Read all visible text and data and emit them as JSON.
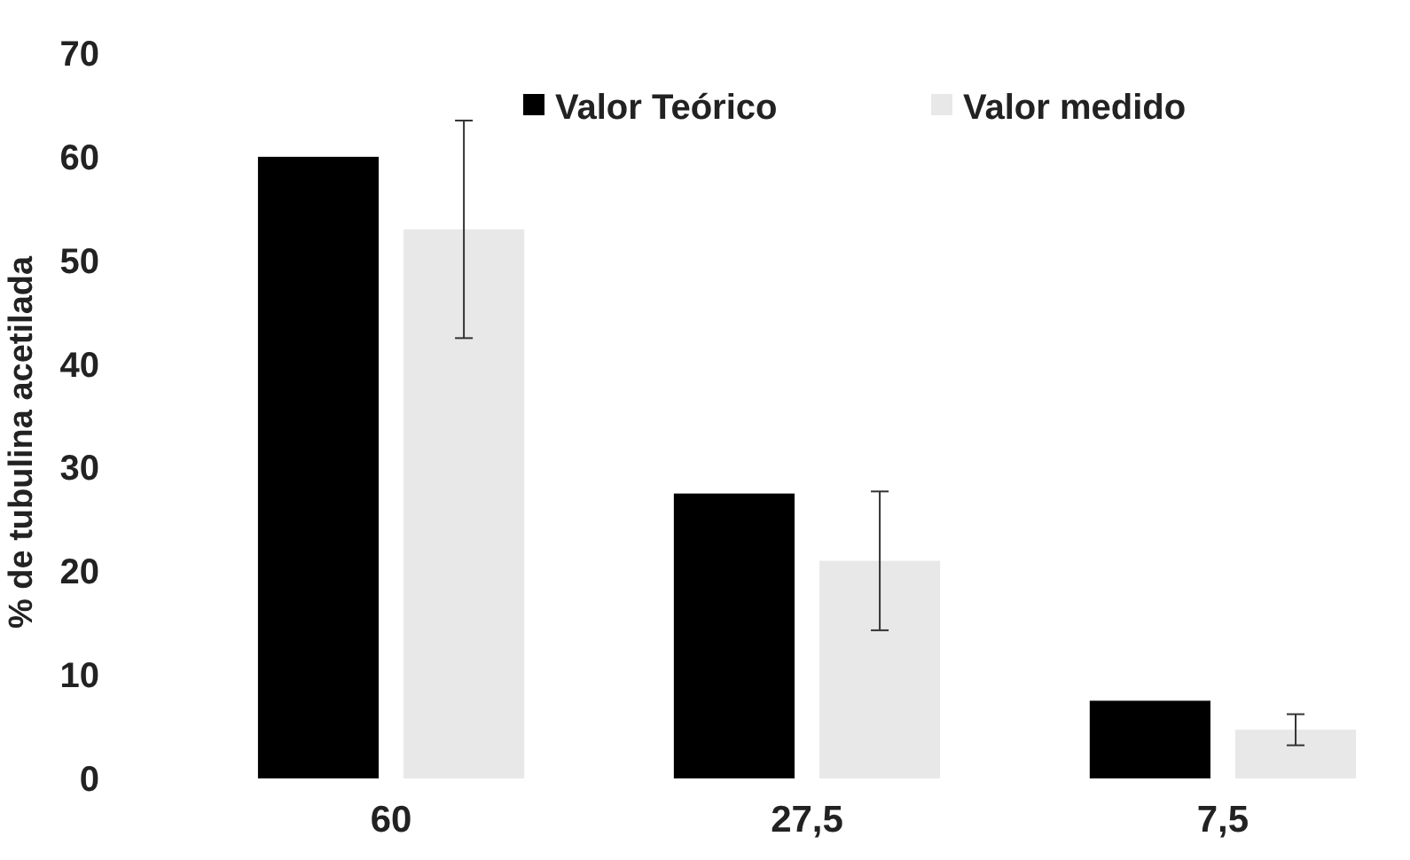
{
  "chart_data": {
    "type": "bar",
    "ylabel": "% de tubulina acetilada",
    "categories": [
      "60",
      "27,5",
      "7,5"
    ],
    "series": [
      {
        "name": "Valor Teórico",
        "color": "#000000",
        "values": [
          60,
          27.5,
          7.5
        ]
      },
      {
        "name": "Valor medido",
        "color": "#e8e8e8",
        "values": [
          53,
          21,
          4.7
        ],
        "errors": [
          10.5,
          6.7,
          1.5
        ]
      }
    ],
    "ylim": [
      0,
      70
    ],
    "yticks": [
      0,
      10,
      20,
      30,
      40,
      50,
      60,
      70
    ],
    "legend": "top right",
    "grid": false
  }
}
